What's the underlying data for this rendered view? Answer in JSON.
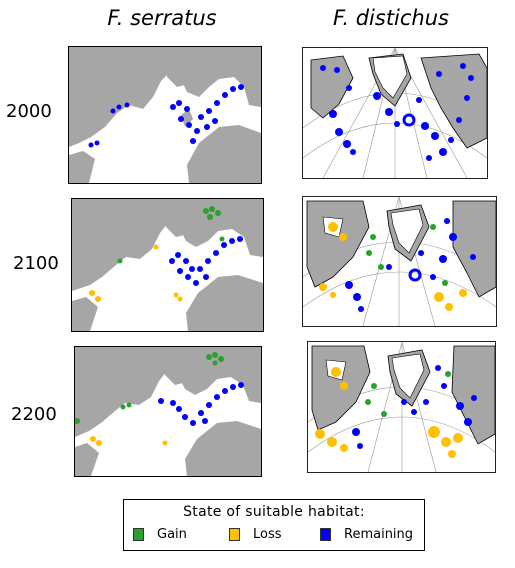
{
  "columns": [
    {
      "title": "F. serratus"
    },
    {
      "title": "F. distichus"
    }
  ],
  "rows": [
    {
      "year": "2000"
    },
    {
      "year": "2100"
    },
    {
      "year": "2200"
    }
  ],
  "legend": {
    "title": "State of suitable habitat:",
    "items": [
      {
        "label": "Gain",
        "color": "#2ca02c"
      },
      {
        "label": "Loss",
        "color": "#ffc000"
      },
      {
        "label": "Remaining",
        "color": "#0000ff"
      }
    ]
  },
  "colors": {
    "land": "#a6a6a6",
    "sea": "#ffffff",
    "gain": "#2ca02c",
    "loss": "#ffc000",
    "remaining": "#0000ff"
  }
}
